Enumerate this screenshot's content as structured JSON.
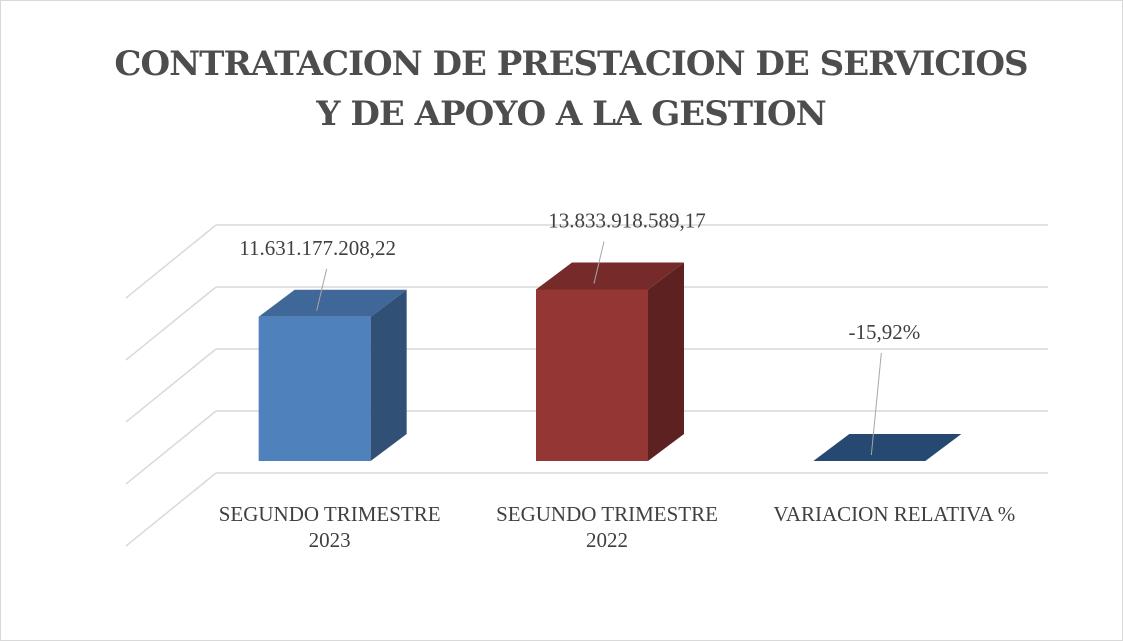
{
  "chart_data": {
    "type": "bar3d",
    "title": "CONTRATACION DE PRESTACION DE SERVICIOS Y DE APOYO A LA GESTION",
    "categories": [
      "SEGUNDO TRIMESTRE 2023",
      "SEGUNDO TRIMESTRE 2022",
      "VARIACION RELATIVA %"
    ],
    "values": [
      11631177208.22,
      13833918589.17,
      -15.92
    ],
    "value_labels": [
      "11.631.177.208,22",
      "13.833.918.589,17",
      "-15,92%"
    ],
    "colors": [
      "#4f81bd",
      "#943634",
      "#2f5b8f"
    ],
    "ylim": [
      0,
      20000000000
    ],
    "yticks": [
      0,
      5000000000,
      10000000000,
      15000000000,
      20000000000
    ],
    "grid": true
  }
}
